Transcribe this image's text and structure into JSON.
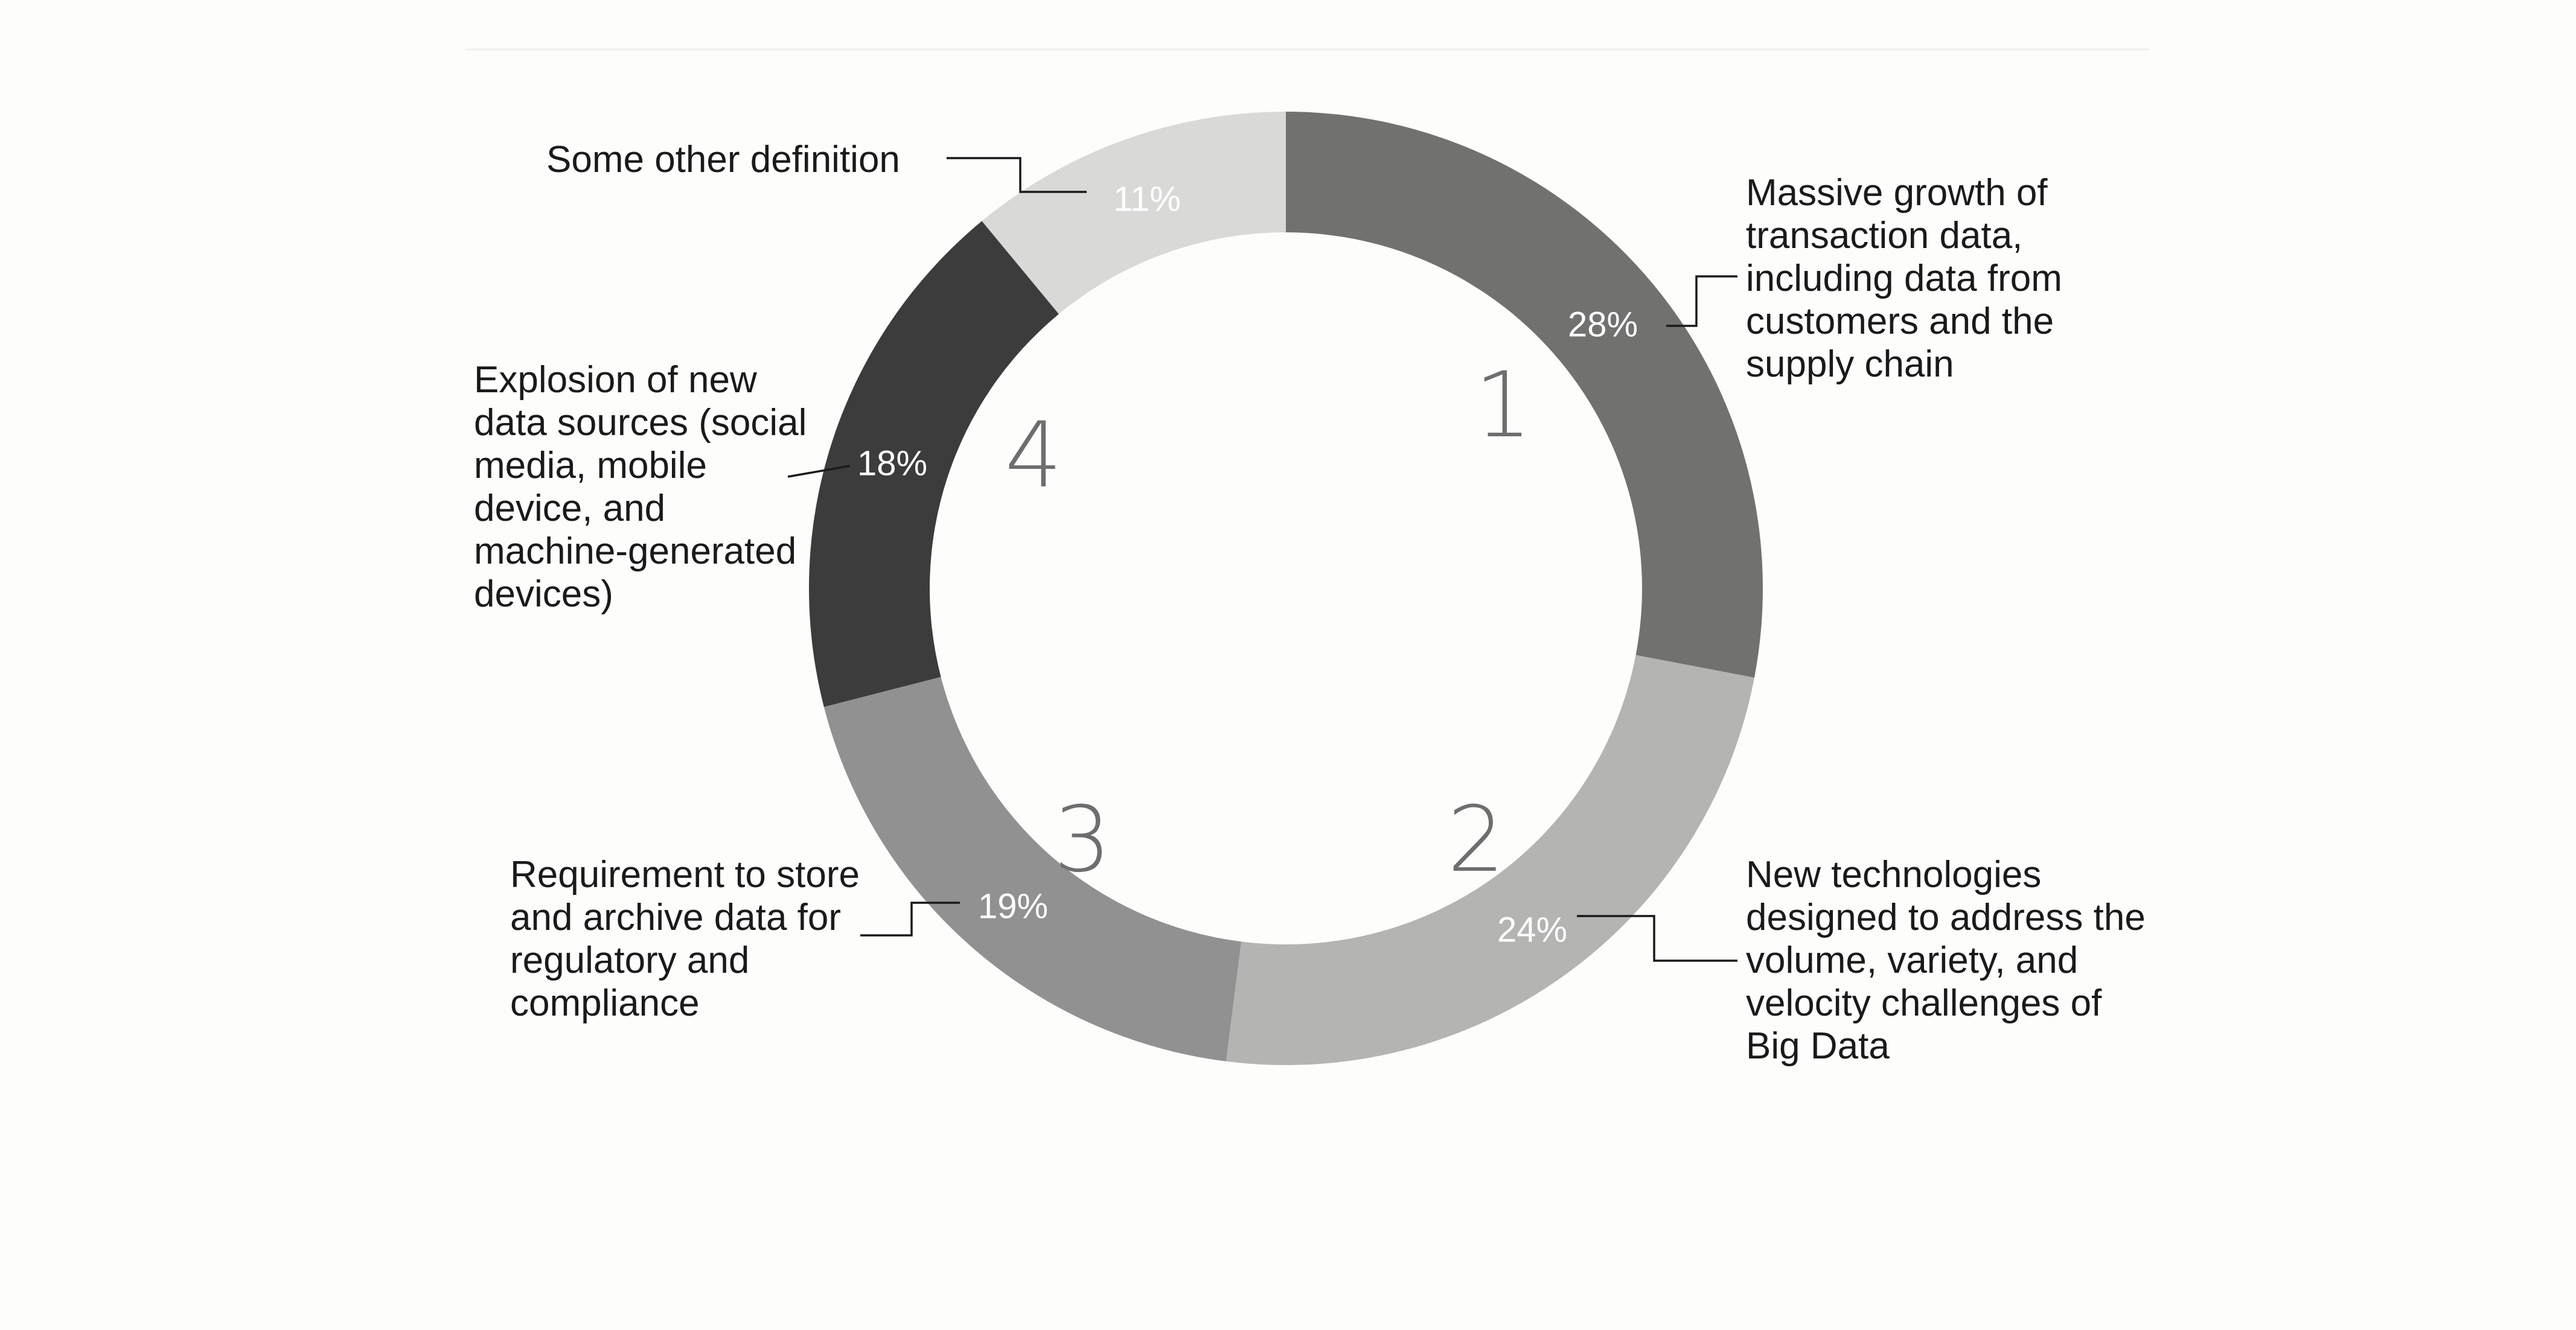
{
  "chart_data": {
    "type": "pie",
    "style": "donut",
    "title": "",
    "legend": "none",
    "series": [
      {
        "rank": "1",
        "value": 28,
        "value_label": "28%",
        "lines": [
          "Massive growth of",
          "transaction data,",
          "including data from",
          "customers and the",
          "supply chain"
        ],
        "color": "#717170"
      },
      {
        "rank": "2",
        "value": 24,
        "value_label": "24%",
        "lines": [
          "New technologies",
          "designed to address the",
          "volume, variety, and",
          "velocity challenges of",
          "Big Data"
        ],
        "color": "#b4b4b3"
      },
      {
        "rank": "3",
        "value": 19,
        "value_label": "19%",
        "lines": [
          "Requirement to store",
          "and archive data for",
          "regulatory and",
          "compliance"
        ],
        "color": "#919191"
      },
      {
        "rank": "4",
        "value": 18,
        "value_label": "18%",
        "lines": [
          "Explosion of new",
          "data sources (social",
          "media, mobile",
          "device, and",
          "machine-generated",
          "devices)"
        ],
        "color": "#3c3c3c"
      },
      {
        "rank": "",
        "value": 11,
        "value_label": "11%",
        "lines": [
          "Some other definition"
        ],
        "color": "#d9d9d8"
      }
    ]
  }
}
